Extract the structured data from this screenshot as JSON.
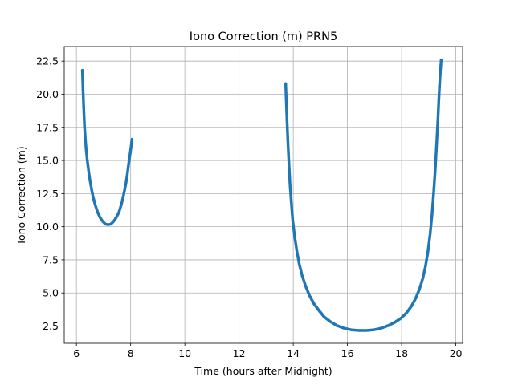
{
  "chart_data": {
    "type": "scatter",
    "title": "Iono Correction (m) PRN5",
    "xlabel": "Time (hours after Midnight)",
    "ylabel": "Iono Correction (m)",
    "xlim": [
      5.55,
      20.25
    ],
    "ylim": [
      1.2,
      23.6
    ],
    "xticks": [
      6,
      8,
      10,
      12,
      14,
      16,
      18,
      20
    ],
    "xtick_labels": [
      "6",
      "8",
      "10",
      "12",
      "14",
      "16",
      "18",
      "20"
    ],
    "yticks": [
      2.5,
      5.0,
      7.5,
      10.0,
      12.5,
      15.0,
      17.5,
      20.0,
      22.5
    ],
    "ytick_labels": [
      "2.5",
      "5.0",
      "7.5",
      "10.0",
      "12.5",
      "15.0",
      "17.5",
      "20.0",
      "22.5"
    ],
    "grid": true,
    "marker_color": "#1f77b4",
    "series": [
      {
        "x": [
          6.22,
          6.24,
          6.26,
          6.28,
          6.3,
          6.33,
          6.36,
          6.4,
          6.45,
          6.5,
          6.56,
          6.62,
          6.7,
          6.78,
          6.87,
          6.97,
          7.07,
          7.17,
          7.27,
          7.37,
          7.47,
          7.57,
          7.66,
          7.74,
          7.82,
          7.88,
          7.93,
          7.98,
          8.02,
          8.05
        ],
        "y": [
          21.8,
          20.5,
          19.4,
          18.4,
          17.5,
          16.6,
          15.8,
          15.0,
          14.2,
          13.5,
          12.8,
          12.2,
          11.6,
          11.1,
          10.7,
          10.4,
          10.2,
          10.15,
          10.2,
          10.4,
          10.7,
          11.1,
          11.7,
          12.4,
          13.2,
          14.0,
          14.8,
          15.5,
          16.1,
          16.6
        ]
      },
      {
        "x": [
          13.72,
          13.76,
          13.8,
          13.84,
          13.88,
          13.93,
          13.98,
          14.05,
          14.13,
          14.22,
          14.33,
          14.46,
          14.6,
          14.76,
          14.94,
          15.14,
          15.36,
          15.6,
          15.86,
          16.14,
          16.42,
          16.7,
          16.98,
          17.26,
          17.52,
          17.76,
          17.98,
          18.18,
          18.36,
          18.52,
          18.66,
          18.78,
          18.88,
          18.97,
          19.05,
          19.12,
          19.18,
          19.24,
          19.29,
          19.34,
          19.38,
          19.42,
          19.46
        ],
        "y": [
          20.8,
          18.5,
          16.5,
          14.8,
          13.2,
          11.8,
          10.5,
          9.3,
          8.2,
          7.2,
          6.3,
          5.5,
          4.8,
          4.2,
          3.7,
          3.2,
          2.85,
          2.55,
          2.35,
          2.22,
          2.17,
          2.17,
          2.22,
          2.35,
          2.55,
          2.8,
          3.1,
          3.5,
          4.0,
          4.6,
          5.3,
          6.1,
          7.0,
          8.1,
          9.4,
          10.9,
          12.5,
          14.3,
          16.2,
          18.1,
          19.9,
          21.4,
          22.6
        ]
      }
    ]
  }
}
